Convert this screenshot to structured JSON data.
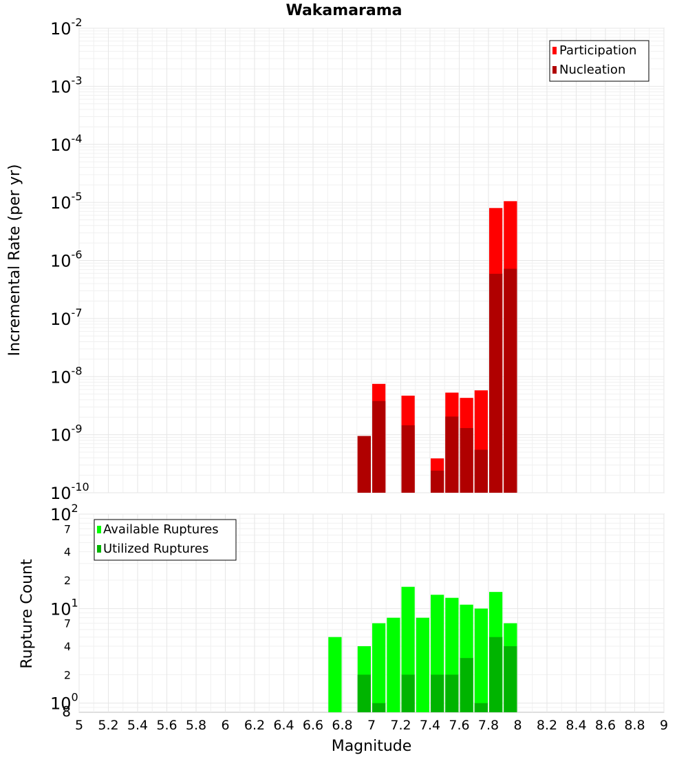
{
  "chart_data": [
    {
      "type": "bar",
      "title": "Wakamarama",
      "xlabel": "",
      "ylabel": "Incremental Rate (per yr)",
      "yscale": "log",
      "xlim": [
        5,
        9
      ],
      "ylim": [
        1e-10,
        0.01
      ],
      "grid": true,
      "legend_position": "top-right",
      "y_tick_labels": [
        {
          "base": "10",
          "exp": "-10",
          "value": 1e-10
        },
        {
          "base": "10",
          "exp": "-9",
          "value": 1e-09
        },
        {
          "base": "10",
          "exp": "-8",
          "value": 1e-08
        },
        {
          "base": "10",
          "exp": "-7",
          "value": 1e-07
        },
        {
          "base": "10",
          "exp": "-6",
          "value": 1e-06
        },
        {
          "base": "10",
          "exp": "-5",
          "value": 1e-05
        },
        {
          "base": "10",
          "exp": "-4",
          "value": 0.0001
        },
        {
          "base": "10",
          "exp": "-3",
          "value": 0.001
        },
        {
          "base": "10",
          "exp": "-2",
          "value": 0.01
        }
      ],
      "series": [
        {
          "name": "Participation",
          "color": "#ff0000",
          "points": [
            {
              "x": 6.95,
              "y": 9.5e-10
            },
            {
              "x": 7.05,
              "y": 7.5e-09
            },
            {
              "x": 7.25,
              "y": 4.7e-09
            },
            {
              "x": 7.45,
              "y": 3.9e-10
            },
            {
              "x": 7.55,
              "y": 5.3e-09
            },
            {
              "x": 7.65,
              "y": 4.3e-09
            },
            {
              "x": 7.75,
              "y": 5.8e-09
            },
            {
              "x": 7.85,
              "y": 8e-06
            },
            {
              "x": 7.95,
              "y": 1.05e-05
            }
          ]
        },
        {
          "name": "Nucleation",
          "color": "#b00000",
          "points": [
            {
              "x": 6.95,
              "y": 9.5e-10
            },
            {
              "x": 7.05,
              "y": 3.8e-09
            },
            {
              "x": 7.25,
              "y": 1.45e-09
            },
            {
              "x": 7.45,
              "y": 2.4e-10
            },
            {
              "x": 7.55,
              "y": 2.05e-09
            },
            {
              "x": 7.65,
              "y": 1.3e-09
            },
            {
              "x": 7.75,
              "y": 5.5e-10
            },
            {
              "x": 7.85,
              "y": 5.9e-07
            },
            {
              "x": 7.95,
              "y": 7.2e-07
            }
          ]
        }
      ]
    },
    {
      "type": "bar",
      "title": "",
      "xlabel": "Magnitude",
      "ylabel": "Rupture Count",
      "yscale": "log",
      "xlim": [
        5,
        9
      ],
      "ylim": [
        0.8,
        100
      ],
      "grid": true,
      "legend_position": "top-left",
      "x_tick_labels": [
        "5",
        "5.2",
        "5.4",
        "5.6",
        "5.8",
        "6",
        "6.2",
        "6.4",
        "6.6",
        "6.8",
        "7",
        "7.2",
        "7.4",
        "7.6",
        "7.8",
        "8",
        "8.2",
        "8.4",
        "8.6",
        "8.8",
        "9"
      ],
      "y_tick_labels": [
        {
          "base": "10",
          "exp": "0",
          "value": 1
        },
        {
          "base": "10",
          "exp": "1",
          "value": 10
        },
        {
          "base": "10",
          "exp": "2",
          "value": 100
        }
      ],
      "y_minor_tick_labels": [
        {
          "label": "8",
          "value": 0.8
        },
        {
          "label": "2",
          "value": 2
        },
        {
          "label": "4",
          "value": 4
        },
        {
          "label": "7",
          "value": 7
        },
        {
          "label": "2",
          "value": 20
        },
        {
          "label": "4",
          "value": 40
        },
        {
          "label": "7",
          "value": 70
        }
      ],
      "series": [
        {
          "name": "Available Ruptures",
          "color": "#00ff00",
          "points": [
            {
              "x": 6.75,
              "y": 5
            },
            {
              "x": 6.95,
              "y": 4
            },
            {
              "x": 7.05,
              "y": 7
            },
            {
              "x": 7.15,
              "y": 8
            },
            {
              "x": 7.25,
              "y": 17
            },
            {
              "x": 7.35,
              "y": 8
            },
            {
              "x": 7.45,
              "y": 14
            },
            {
              "x": 7.55,
              "y": 13
            },
            {
              "x": 7.65,
              "y": 11
            },
            {
              "x": 7.75,
              "y": 10
            },
            {
              "x": 7.85,
              "y": 15
            },
            {
              "x": 7.95,
              "y": 7
            }
          ]
        },
        {
          "name": "Utilized Ruptures",
          "color": "#00b400",
          "points": [
            {
              "x": 6.95,
              "y": 2
            },
            {
              "x": 7.05,
              "y": 1
            },
            {
              "x": 7.25,
              "y": 2
            },
            {
              "x": 7.45,
              "y": 2
            },
            {
              "x": 7.55,
              "y": 2
            },
            {
              "x": 7.65,
              "y": 3
            },
            {
              "x": 7.75,
              "y": 1
            },
            {
              "x": 7.85,
              "y": 5
            },
            {
              "x": 7.95,
              "y": 4
            }
          ]
        }
      ]
    }
  ]
}
